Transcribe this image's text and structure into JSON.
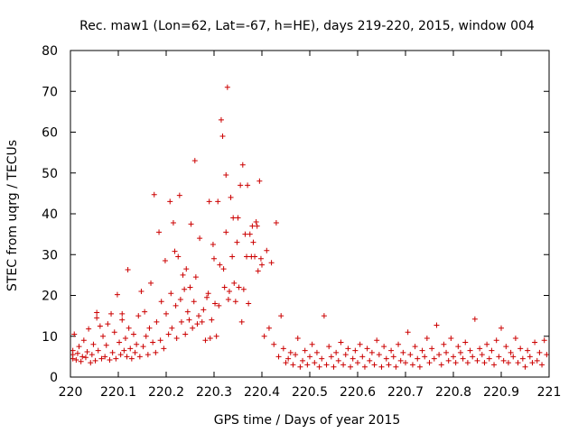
{
  "chart_data": {
    "type": "scatter",
    "title": "Rec. maw1 (Lon=62, Lat=-67, h=HE), days 219-220, 2015, window 004",
    "xlabel": "GPS time / Days of year 2015",
    "ylabel": "STEC from uqrg / TECUs",
    "xlim": [
      220,
      221
    ],
    "ylim": [
      0,
      80
    ],
    "xticks": [
      "220",
      "220.1",
      "220.2",
      "220.3",
      "220.4",
      "220.5",
      "220.6",
      "220.7",
      "220.8",
      "220.9",
      "221"
    ],
    "xtick_values": [
      220,
      220.1,
      220.2,
      220.3,
      220.4,
      220.5,
      220.6,
      220.7,
      220.8,
      220.9,
      221
    ],
    "yticks": [
      "0",
      "10",
      "20",
      "30",
      "40",
      "50",
      "60",
      "70",
      "80"
    ],
    "ytick_values": [
      0,
      10,
      20,
      30,
      40,
      50,
      60,
      70,
      80
    ],
    "grid": false,
    "legend": "none",
    "marker": "plus",
    "color": "#cc0000",
    "series": [
      {
        "points": [
          [
            220.005,
            4.5
          ],
          [
            220.005,
            5.5
          ],
          [
            220.005,
            6.5
          ],
          [
            220.008,
            10.5
          ],
          [
            220.012,
            4.2
          ],
          [
            220.015,
            5.8
          ],
          [
            220.018,
            7.5
          ],
          [
            220.022,
            3.8
          ],
          [
            220.025,
            5.0
          ],
          [
            220.028,
            9.0
          ],
          [
            220.032,
            4.8
          ],
          [
            220.035,
            6.2
          ],
          [
            220.038,
            11.8
          ],
          [
            220.042,
            3.5
          ],
          [
            220.045,
            5.5
          ],
          [
            220.048,
            8.0
          ],
          [
            220.052,
            4.0
          ],
          [
            220.055,
            14.5
          ],
          [
            220.055,
            15.8
          ],
          [
            220.058,
            6.5
          ],
          [
            220.062,
            12.5
          ],
          [
            220.065,
            4.5
          ],
          [
            220.068,
            10.0
          ],
          [
            220.072,
            5.0
          ],
          [
            220.075,
            7.8
          ],
          [
            220.078,
            13.0
          ],
          [
            220.082,
            4.2
          ],
          [
            220.085,
            15.5
          ],
          [
            220.088,
            6.0
          ],
          [
            220.092,
            11.0
          ],
          [
            220.095,
            4.5
          ],
          [
            220.098,
            20.2
          ],
          [
            220.102,
            8.5
          ],
          [
            220.105,
            5.5
          ],
          [
            220.108,
            15.5
          ],
          [
            220.108,
            14.0
          ],
          [
            220.112,
            6.5
          ],
          [
            220.115,
            9.5
          ],
          [
            220.118,
            5.0
          ],
          [
            220.12,
            26.3
          ],
          [
            220.122,
            12.0
          ],
          [
            220.125,
            7.0
          ],
          [
            220.128,
            4.5
          ],
          [
            220.132,
            10.5
          ],
          [
            220.135,
            6.0
          ],
          [
            220.138,
            8.0
          ],
          [
            220.142,
            15.0
          ],
          [
            220.145,
            5.0
          ],
          [
            220.148,
            21.0
          ],
          [
            220.152,
            7.5
          ],
          [
            220.155,
            16.0
          ],
          [
            220.158,
            10.0
          ],
          [
            220.162,
            5.5
          ],
          [
            220.165,
            12.0
          ],
          [
            220.168,
            23.0
          ],
          [
            220.172,
            8.5
          ],
          [
            220.175,
            44.7
          ],
          [
            220.178,
            6.0
          ],
          [
            220.18,
            13.5
          ],
          [
            220.185,
            35.5
          ],
          [
            220.188,
            9.0
          ],
          [
            220.19,
            18.5
          ],
          [
            220.195,
            7.0
          ],
          [
            220.198,
            28.5
          ],
          [
            220.2,
            15.5
          ],
          [
            220.205,
            10.5
          ],
          [
            220.208,
            43.0
          ],
          [
            220.21,
            20.5
          ],
          [
            220.212,
            12.0
          ],
          [
            220.215,
            37.8
          ],
          [
            220.218,
            30.8
          ],
          [
            220.22,
            17.5
          ],
          [
            220.222,
            9.5
          ],
          [
            220.225,
            29.5
          ],
          [
            220.228,
            44.5
          ],
          [
            220.23,
            19.0
          ],
          [
            220.232,
            13.5
          ],
          [
            220.235,
            25.0
          ],
          [
            220.238,
            21.5
          ],
          [
            220.24,
            10.5
          ],
          [
            220.242,
            26.5
          ],
          [
            220.245,
            16.0
          ],
          [
            220.248,
            14.0
          ],
          [
            220.25,
            22.0
          ],
          [
            220.252,
            37.5
          ],
          [
            220.255,
            12.0
          ],
          [
            220.258,
            18.5
          ],
          [
            220.26,
            53.0
          ],
          [
            220.262,
            24.5
          ],
          [
            220.265,
            13.0
          ],
          [
            220.268,
            15.0
          ],
          [
            220.27,
            34.0
          ],
          [
            220.275,
            13.5
          ],
          [
            220.278,
            16.5
          ],
          [
            220.282,
            9.0
          ],
          [
            220.285,
            19.5
          ],
          [
            220.288,
            20.5
          ],
          [
            220.29,
            43.0
          ],
          [
            220.292,
            9.5
          ],
          [
            220.295,
            14.0
          ],
          [
            220.298,
            32.5
          ],
          [
            220.3,
            29.0
          ],
          [
            220.302,
            18.0
          ],
          [
            220.305,
            10.0
          ],
          [
            220.308,
            43.0
          ],
          [
            220.31,
            17.5
          ],
          [
            220.312,
            27.5
          ],
          [
            220.315,
            63.0
          ],
          [
            220.318,
            59.0
          ],
          [
            220.32,
            26.5
          ],
          [
            220.322,
            22.0
          ],
          [
            220.325,
            35.5
          ],
          [
            220.325,
            49.5
          ],
          [
            220.328,
            71.0
          ],
          [
            220.33,
            19.0
          ],
          [
            220.332,
            21.0
          ],
          [
            220.335,
            44.0
          ],
          [
            220.338,
            29.5
          ],
          [
            220.34,
            39.0
          ],
          [
            220.342,
            23.0
          ],
          [
            220.345,
            18.5
          ],
          [
            220.348,
            33.0
          ],
          [
            220.35,
            39.0
          ],
          [
            220.352,
            22.0
          ],
          [
            220.355,
            47.0
          ],
          [
            220.358,
            13.5
          ],
          [
            220.36,
            52.0
          ],
          [
            220.362,
            21.5
          ],
          [
            220.365,
            35.0
          ],
          [
            220.368,
            29.5
          ],
          [
            220.37,
            47.0
          ],
          [
            220.372,
            18.0
          ],
          [
            220.375,
            35.0
          ],
          [
            220.378,
            29.5
          ],
          [
            220.38,
            37.0
          ],
          [
            220.382,
            33.0
          ],
          [
            220.385,
            29.5
          ],
          [
            220.388,
            38.0
          ],
          [
            220.39,
            37.0
          ],
          [
            220.392,
            26.0
          ],
          [
            220.395,
            48.0
          ],
          [
            220.398,
            29.0
          ],
          [
            220.4,
            27.5
          ],
          [
            220.405,
            10.0
          ],
          [
            220.41,
            31.0
          ],
          [
            220.415,
            12.0
          ],
          [
            220.42,
            28.0
          ],
          [
            220.425,
            8.0
          ],
          [
            220.43,
            37.8
          ],
          [
            220.435,
            5.0
          ],
          [
            220.44,
            15.0
          ],
          [
            220.445,
            7.0
          ],
          [
            220.45,
            3.5
          ],
          [
            220.455,
            4.5
          ],
          [
            220.46,
            6.0
          ],
          [
            220.465,
            3.0
          ],
          [
            220.47,
            5.5
          ],
          [
            220.475,
            9.5
          ],
          [
            220.48,
            2.5
          ],
          [
            220.485,
            4.0
          ],
          [
            220.49,
            6.5
          ],
          [
            220.495,
            3.0
          ],
          [
            220.5,
            5.0
          ],
          [
            220.505,
            8.0
          ],
          [
            220.51,
            3.5
          ],
          [
            220.515,
            6.0
          ],
          [
            220.52,
            2.5
          ],
          [
            220.525,
            4.5
          ],
          [
            220.53,
            15.0
          ],
          [
            220.535,
            3.0
          ],
          [
            220.54,
            7.5
          ],
          [
            220.545,
            5.0
          ],
          [
            220.55,
            2.5
          ],
          [
            220.555,
            6.0
          ],
          [
            220.56,
            4.0
          ],
          [
            220.565,
            8.5
          ],
          [
            220.57,
            3.0
          ],
          [
            220.575,
            5.5
          ],
          [
            220.58,
            7.0
          ],
          [
            220.585,
            2.5
          ],
          [
            220.59,
            4.5
          ],
          [
            220.595,
            6.5
          ],
          [
            220.6,
            3.5
          ],
          [
            220.605,
            8.0
          ],
          [
            220.61,
            5.0
          ],
          [
            220.615,
            2.5
          ],
          [
            220.62,
            7.0
          ],
          [
            220.625,
            4.0
          ],
          [
            220.63,
            6.0
          ],
          [
            220.635,
            3.0
          ],
          [
            220.64,
            9.0
          ],
          [
            220.645,
            5.5
          ],
          [
            220.65,
            2.5
          ],
          [
            220.655,
            7.5
          ],
          [
            220.66,
            4.5
          ],
          [
            220.665,
            3.0
          ],
          [
            220.67,
            6.5
          ],
          [
            220.675,
            5.0
          ],
          [
            220.68,
            2.5
          ],
          [
            220.685,
            8.0
          ],
          [
            220.69,
            4.0
          ],
          [
            220.695,
            6.0
          ],
          [
            220.7,
            3.5
          ],
          [
            220.705,
            11.0
          ],
          [
            220.71,
            5.5
          ],
          [
            220.715,
            3.0
          ],
          [
            220.72,
            7.5
          ],
          [
            220.725,
            4.5
          ],
          [
            220.73,
            2.5
          ],
          [
            220.735,
            6.5
          ],
          [
            220.74,
            5.0
          ],
          [
            220.745,
            9.5
          ],
          [
            220.75,
            3.5
          ],
          [
            220.755,
            7.0
          ],
          [
            220.76,
            4.5
          ],
          [
            220.765,
            12.7
          ],
          [
            220.77,
            5.5
          ],
          [
            220.775,
            3.0
          ],
          [
            220.78,
            8.0
          ],
          [
            220.785,
            6.0
          ],
          [
            220.79,
            4.0
          ],
          [
            220.795,
            9.5
          ],
          [
            220.8,
            5.0
          ],
          [
            220.805,
            3.5
          ],
          [
            220.81,
            7.5
          ],
          [
            220.815,
            6.0
          ],
          [
            220.82,
            4.5
          ],
          [
            220.825,
            8.5
          ],
          [
            220.83,
            3.5
          ],
          [
            220.835,
            6.5
          ],
          [
            220.84,
            5.0
          ],
          [
            220.845,
            14.2
          ],
          [
            220.85,
            4.0
          ],
          [
            220.855,
            7.0
          ],
          [
            220.86,
            5.5
          ],
          [
            220.865,
            3.5
          ],
          [
            220.87,
            8.0
          ],
          [
            220.875,
            4.5
          ],
          [
            220.88,
            6.5
          ],
          [
            220.885,
            3.0
          ],
          [
            220.89,
            9.0
          ],
          [
            220.895,
            5.0
          ],
          [
            220.9,
            12.0
          ],
          [
            220.905,
            4.0
          ],
          [
            220.91,
            7.5
          ],
          [
            220.915,
            3.5
          ],
          [
            220.92,
            6.0
          ],
          [
            220.925,
            5.0
          ],
          [
            220.93,
            9.5
          ],
          [
            220.935,
            3.5
          ],
          [
            220.94,
            7.0
          ],
          [
            220.945,
            4.5
          ],
          [
            220.95,
            2.5
          ],
          [
            220.955,
            6.5
          ],
          [
            220.96,
            5.0
          ],
          [
            220.965,
            3.5
          ],
          [
            220.97,
            8.5
          ],
          [
            220.975,
            4.0
          ],
          [
            220.98,
            6.0
          ],
          [
            220.985,
            3.0
          ],
          [
            220.99,
            9.0
          ],
          [
            220.995,
            5.5
          ]
        ]
      }
    ]
  }
}
